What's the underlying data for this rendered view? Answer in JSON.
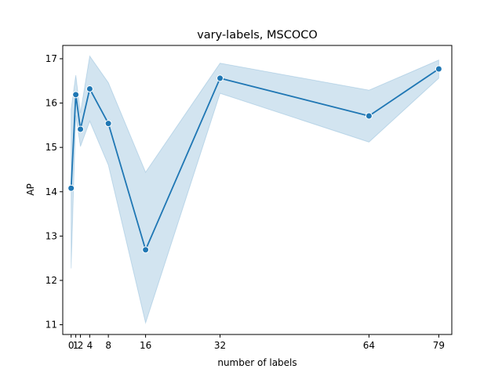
{
  "chart_data": {
    "type": "line",
    "title": "vary-labels, MSCOCO",
    "xlabel": "number of labels",
    "ylabel": "AP",
    "x_ticks": [
      0,
      1,
      2,
      4,
      8,
      16,
      32,
      64,
      79
    ],
    "y_ticks": [
      11,
      12,
      13,
      14,
      15,
      16,
      17
    ],
    "xlim": [
      -1.8,
      81.8
    ],
    "ylim": [
      10.78,
      17.3
    ],
    "grid": false,
    "line_color": "#1f77b4",
    "band_color": "#1f77b4",
    "series": [
      {
        "x": [
          0,
          1,
          2,
          4,
          8,
          16,
          32,
          64,
          79
        ],
        "y": [
          14.08,
          16.19,
          15.41,
          16.32,
          15.54,
          12.69,
          16.56,
          15.71,
          16.77
        ],
        "ci_low": [
          12.27,
          15.72,
          15.02,
          15.59,
          14.6,
          11.04,
          16.22,
          15.12,
          16.56
        ],
        "ci_high": [
          15.86,
          16.63,
          15.78,
          17.06,
          16.46,
          14.44,
          16.9,
          16.29,
          16.97
        ]
      }
    ]
  }
}
